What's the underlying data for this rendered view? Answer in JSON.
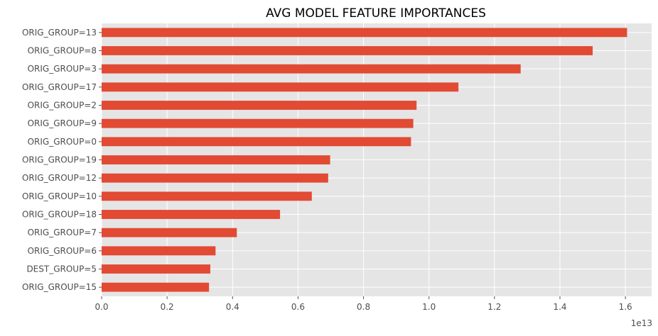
{
  "chart_data": {
    "type": "bar",
    "orientation": "horizontal",
    "title": "AVG MODEL FEATURE IMPORTANCES",
    "xlabel": "",
    "ylabel": "",
    "x_offset_label": "1e13",
    "categories": [
      "ORIG_GROUP=13",
      "ORIG_GROUP=8",
      "ORIG_GROUP=3",
      "ORIG_GROUP=17",
      "ORIG_GROUP=2",
      "ORIG_GROUP=9",
      "ORIG_GROUP=0",
      "ORIG_GROUP=19",
      "ORIG_GROUP=12",
      "ORIG_GROUP=10",
      "ORIG_GROUP=18",
      "ORIG_GROUP=7",
      "ORIG_GROUP=6",
      "DEST_GROUP=5",
      "ORIG_GROUP=15"
    ],
    "values": [
      1.605,
      1.5,
      1.28,
      1.09,
      0.962,
      0.952,
      0.945,
      0.698,
      0.692,
      0.642,
      0.545,
      0.413,
      0.348,
      0.332,
      0.328
    ],
    "xlim": [
      0,
      1.68
    ],
    "xticks": [
      0,
      0.2,
      0.4,
      0.6,
      0.8,
      1.0,
      1.2,
      1.4,
      1.6
    ],
    "xtick_labels": [
      "0.0",
      "0.2",
      "0.4",
      "0.6",
      "0.8",
      "1.0",
      "1.2",
      "1.4",
      "1.6"
    ],
    "grid": true,
    "legend": "none",
    "colors": {
      "bar": "#E24A33",
      "plot_background": "#E5E5E5",
      "grid": "#FFFFFF"
    }
  }
}
